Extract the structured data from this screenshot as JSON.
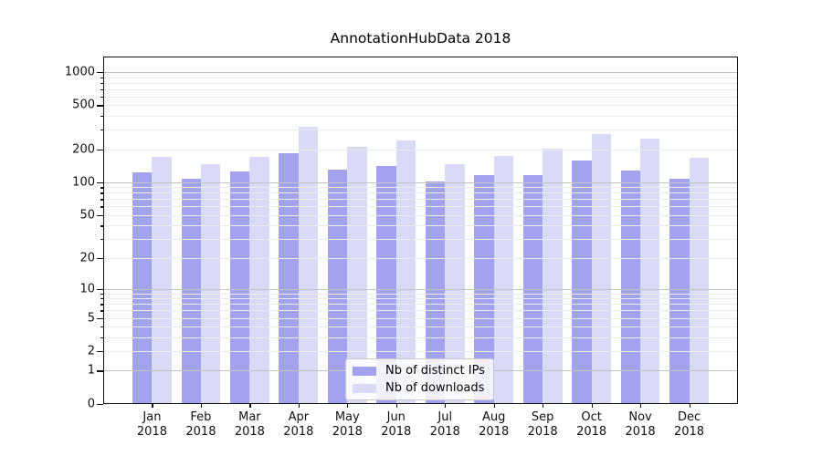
{
  "figure": {
    "title": "AnnotationHubData 2018"
  },
  "legend": {
    "items": [
      {
        "label": "Nb of distinct IPs",
        "color": "#a2a2ee"
      },
      {
        "label": "Nb of downloads",
        "color": "#d9d9f8"
      }
    ]
  },
  "chart_data": {
    "type": "bar",
    "title": "AnnotationHubData 2018",
    "categories": [
      "Jan 2018",
      "Feb 2018",
      "Mar 2018",
      "Apr 2018",
      "May 2018",
      "Jun 2018",
      "Jul 2018",
      "Aug 2018",
      "Sep 2018",
      "Oct 2018",
      "Nov 2018",
      "Dec 2018"
    ],
    "series": [
      {
        "name": "Nb of distinct IPs",
        "color": "#a2a2ee",
        "values": [
          122,
          107,
          126,
          184,
          131,
          140,
          102,
          117,
          117,
          158,
          128,
          107
        ]
      },
      {
        "name": "Nb of downloads",
        "color": "#d9d9f8",
        "values": [
          172,
          147,
          172,
          317,
          211,
          240,
          147,
          174,
          202,
          273,
          251,
          167
        ]
      }
    ],
    "xlabel": "",
    "ylabel": "",
    "y_scale": "log1p",
    "y_ticks": [
      0,
      1,
      2,
      5,
      10,
      20,
      50,
      100,
      200,
      500,
      1000
    ],
    "ylim": [
      0,
      1400
    ],
    "grid": true,
    "grid_over_bars": true,
    "legend_position": "lower center"
  }
}
